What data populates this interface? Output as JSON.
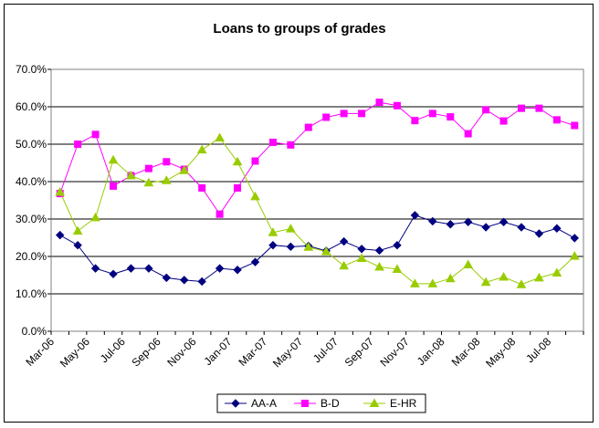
{
  "chart_data": {
    "type": "line",
    "title": "Loans to groups of grades",
    "xlabel": "",
    "ylabel": "",
    "ylim": [
      0,
      70
    ],
    "y_ticks": [
      "0.0%",
      "10.0%",
      "20.0%",
      "30.0%",
      "40.0%",
      "50.0%",
      "60.0%",
      "70.0%"
    ],
    "x": [
      "Mar-06",
      "Apr-06",
      "May-06",
      "Jun-06",
      "Jul-06",
      "Aug-06",
      "Sep-06",
      "Oct-06",
      "Nov-06",
      "Dec-06",
      "Jan-07",
      "Feb-07",
      "Mar-07",
      "Apr-07",
      "May-07",
      "Jun-07",
      "Jul-07",
      "Aug-07",
      "Sep-07",
      "Oct-07",
      "Nov-07",
      "Dec-07",
      "Jan-08",
      "Feb-08",
      "Mar-08",
      "Apr-08",
      "May-08",
      "Jun-08",
      "Jul-08",
      "Aug-08"
    ],
    "x_tick_labels": [
      "Mar-06",
      "May-06",
      "Jul-06",
      "Sep-06",
      "Nov-06",
      "Jan-07",
      "Mar-07",
      "May-07",
      "Jul-07",
      "Sep-07",
      "Nov-07",
      "Jan-08",
      "Mar-08",
      "May-08",
      "Jul-08"
    ],
    "grid": "horizontal",
    "legend_position": "bottom",
    "series": [
      {
        "name": "AA-A",
        "color": "#000080",
        "marker": "diamond",
        "values": [
          25.7,
          23.0,
          16.8,
          15.3,
          16.8,
          16.8,
          14.3,
          13.7,
          13.3,
          16.8,
          16.4,
          18.5,
          23.0,
          22.6,
          22.8,
          21.5,
          24.0,
          22.0,
          21.6,
          23.0,
          31.0,
          29.4,
          28.6,
          29.2,
          27.8,
          29.2,
          27.8,
          26.1,
          27.5,
          24.9
        ]
      },
      {
        "name": "B-D",
        "color": "#ff00ff",
        "marker": "square",
        "values": [
          36.8,
          50.0,
          52.6,
          38.8,
          41.6,
          43.5,
          45.3,
          43.3,
          38.3,
          31.3,
          38.3,
          45.5,
          50.5,
          49.8,
          54.5,
          57.2,
          58.2,
          58.2,
          61.2,
          60.3,
          56.3,
          58.2,
          57.3,
          52.8,
          59.2,
          56.2,
          59.6,
          59.6,
          56.5,
          55.0
        ]
      },
      {
        "name": "E-HR",
        "color": "#99cc00",
        "marker": "triangle",
        "values": [
          37.2,
          26.8,
          30.4,
          45.8,
          41.6,
          39.7,
          40.3,
          43.0,
          48.5,
          51.7,
          45.3,
          36.0,
          26.4,
          27.4,
          22.5,
          21.3,
          17.5,
          19.5,
          17.2,
          16.6,
          12.7,
          12.7,
          14.1,
          17.8,
          13.1,
          14.5,
          12.5,
          14.3,
          15.6,
          20.1
        ]
      }
    ]
  }
}
